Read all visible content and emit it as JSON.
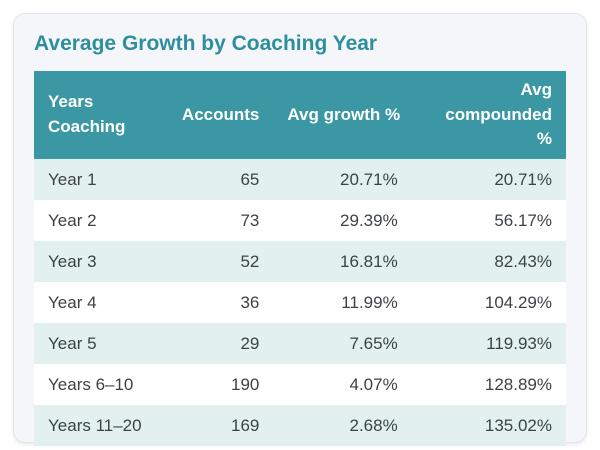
{
  "card": {
    "title": "Average Growth by Coaching Year"
  },
  "table": {
    "columns": [
      {
        "label": "Years Coaching",
        "align": "left"
      },
      {
        "label": "Accounts",
        "align": "right"
      },
      {
        "label": "Avg growth %",
        "align": "right"
      },
      {
        "label": "Avg compounded %",
        "align": "right"
      }
    ],
    "rows": [
      [
        "Year 1",
        "65",
        "20.71%",
        "20.71%"
      ],
      [
        "Year 2",
        "73",
        "29.39%",
        "56.17%"
      ],
      [
        "Year 3",
        "52",
        "16.81%",
        "82.43%"
      ],
      [
        "Year 4",
        "36",
        "11.99%",
        "104.29%"
      ],
      [
        "Year 5",
        "29",
        "7.65%",
        "119.93%"
      ],
      [
        "Years 6–10",
        "190",
        "4.07%",
        "128.89%"
      ],
      [
        "Years 11–20",
        "169",
        "2.68%",
        "135.02%"
      ]
    ]
  },
  "chart_data": {
    "type": "table",
    "title": "Average Growth by Coaching Year",
    "columns": [
      "Years Coaching",
      "Accounts",
      "Avg growth %",
      "Avg compounded %"
    ],
    "categories": [
      "Year 1",
      "Year 2",
      "Year 3",
      "Year 4",
      "Year 5",
      "Years 6–10",
      "Years 11–20"
    ],
    "series": [
      {
        "name": "Accounts",
        "values": [
          65,
          73,
          52,
          36,
          29,
          190,
          169
        ]
      },
      {
        "name": "Avg growth %",
        "values": [
          20.71,
          29.39,
          16.81,
          11.99,
          7.65,
          4.07,
          2.68
        ]
      },
      {
        "name": "Avg compounded %",
        "values": [
          20.71,
          56.17,
          82.43,
          104.29,
          119.93,
          128.89,
          135.02
        ]
      }
    ]
  },
  "colors": {
    "accent_teal": "#2d8f9e",
    "header_bg": "#3b97a4",
    "header_text": "#ffffff",
    "row_alt_bg": "#e2f0f0",
    "row_bg": "#ffffff",
    "card_bg": "#f5f6f9",
    "card_border": "#e3e5ea",
    "body_text": "#3d4247"
  }
}
